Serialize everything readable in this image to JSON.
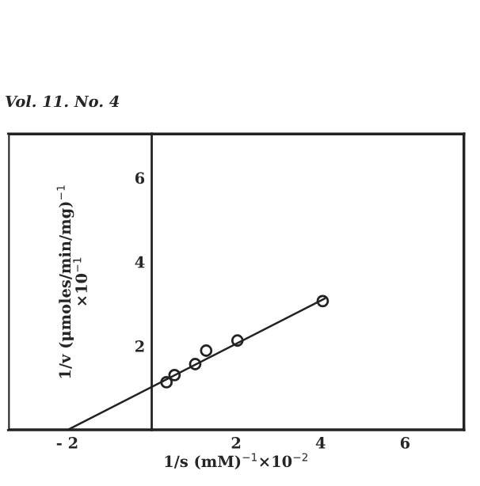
{
  "chart_data": {
    "type": "scatter",
    "annotations": [
      "Vol. 11. No. 4"
    ],
    "xlabel": "1/s (mM)$^{−1}$×10$^{−2}$",
    "ylabel": "1/v (μmoles/min/mg)$^{−1}$\n×10$^{−1}$",
    "series": [
      {
        "color": "#222222",
        "marker": "circle",
        "x": [
          0.35,
          0.54,
          1.03,
          1.29,
          2.03,
          4.05
        ],
        "values": [
          1.14,
          1.31,
          1.57,
          1.89,
          2.13,
          3.07
        ]
      },
      {
        "type": "line",
        "color": "#222222",
        "x": [
          -2,
          4.1
        ],
        "values": [
          0,
          3.13
        ]
      }
    ],
    "xlim": [
      -3.4,
      7.4
    ],
    "ylim": [
      0,
      7.05
    ],
    "xticks": [
      {
        "value": -2,
        "label": "- 2"
      },
      2,
      4,
      6
    ],
    "yticks": [
      2,
      4,
      6
    ],
    "grid": false
  }
}
